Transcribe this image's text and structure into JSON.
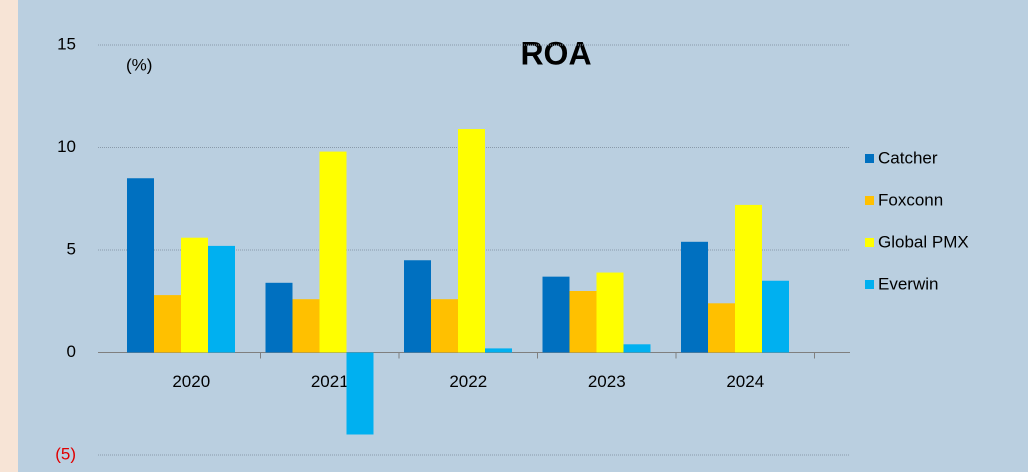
{
  "chart_data": {
    "type": "bar",
    "title": "ROA",
    "y_label": "(%)",
    "categories": [
      "2020",
      "2021",
      "2022",
      "2023",
      "2024"
    ],
    "series": [
      {
        "name": "Catcher",
        "color": "#0070c0",
        "values": [
          8.5,
          3.4,
          4.5,
          3.7,
          5.4
        ]
      },
      {
        "name": "Foxconn",
        "color": "#ffc000",
        "values": [
          2.8,
          2.6,
          2.6,
          3.0,
          2.4
        ]
      },
      {
        "name": "Global PMX",
        "color": "#ffff00",
        "values": [
          5.6,
          9.8,
          10.9,
          3.9,
          7.2
        ]
      },
      {
        "name": "Everwin",
        "color": "#00b0f0",
        "values": [
          5.2,
          -4.0,
          0.2,
          0.4,
          3.5
        ]
      }
    ],
    "ylim": [
      -5,
      15
    ],
    "yticks": [
      {
        "value": -5,
        "label": "(5)"
      },
      0,
      5,
      10,
      15
    ],
    "grid": true,
    "legend": "right"
  }
}
